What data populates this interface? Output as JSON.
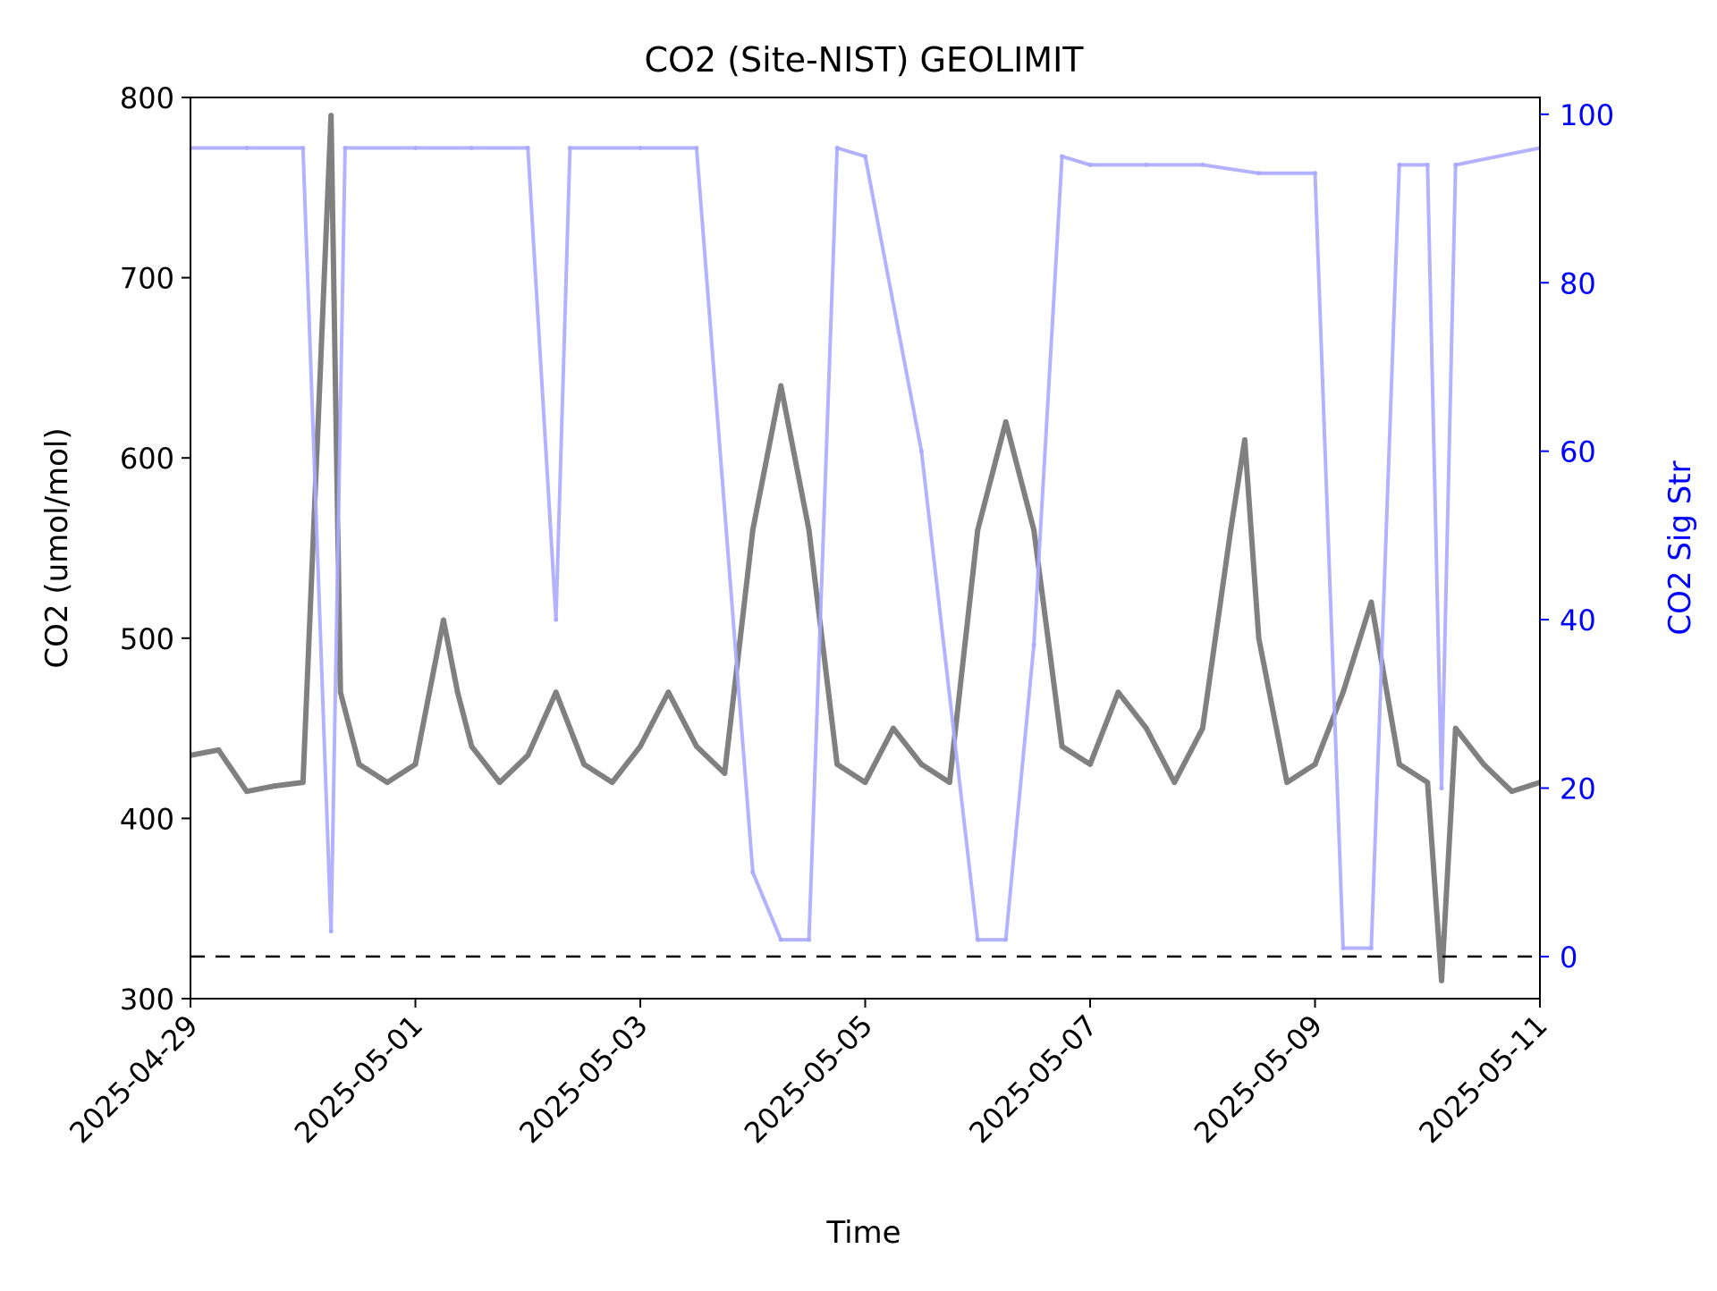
{
  "chart_data": {
    "type": "scatter",
    "title": "CO2 (Site-NIST) GEOLIMIT",
    "xlabel": "Time",
    "ylabel": "CO2 (umol/mol)",
    "y2label": "CO2 Sig Str",
    "xlim": [
      "2025-04-29",
      "2025-05-11"
    ],
    "ylim": [
      300,
      800
    ],
    "y2lim": [
      -5,
      102
    ],
    "x_ticks": [
      "2025-04-29",
      "2025-05-01",
      "2025-05-03",
      "2025-05-05",
      "2025-05-07",
      "2025-05-09",
      "2025-05-11"
    ],
    "y_ticks": [
      300,
      400,
      500,
      600,
      700,
      800
    ],
    "y2_ticks": [
      0,
      20,
      40,
      60,
      80,
      100
    ],
    "reference_line": {
      "axis": "y2",
      "value": 0,
      "style": "dashed",
      "color": "#000000"
    },
    "colors": {
      "co2": "#808080",
      "sig_str": "#aaaaff",
      "y2_axis": "#0000ff",
      "overlap": "#5a5aa8"
    },
    "series": [
      {
        "axis": "y",
        "points": [
          [
            "2025-04-29T00:00",
            435
          ],
          [
            "2025-04-29T06:00",
            438
          ],
          [
            "2025-04-29T12:00",
            415
          ],
          [
            "2025-04-29T18:00",
            418
          ],
          [
            "2025-04-30T00:00",
            420
          ],
          [
            "2025-04-30T06:00",
            790
          ],
          [
            "2025-04-30T08:00",
            470
          ],
          [
            "2025-04-30T12:00",
            430
          ],
          [
            "2025-04-30T18:00",
            420
          ],
          [
            "2025-05-01T00:00",
            430
          ],
          [
            "2025-05-01T06:00",
            510
          ],
          [
            "2025-05-01T09:00",
            470
          ],
          [
            "2025-05-01T12:00",
            440
          ],
          [
            "2025-05-01T18:00",
            420
          ],
          [
            "2025-05-02T00:00",
            435
          ],
          [
            "2025-05-02T06:00",
            470
          ],
          [
            "2025-05-02T12:00",
            430
          ],
          [
            "2025-05-02T18:00",
            420
          ],
          [
            "2025-05-03T00:00",
            440
          ],
          [
            "2025-05-03T06:00",
            470
          ],
          [
            "2025-05-03T12:00",
            440
          ],
          [
            "2025-05-03T18:00",
            425
          ],
          [
            "2025-05-04T00:00",
            560
          ],
          [
            "2025-05-04T06:00",
            640
          ],
          [
            "2025-05-04T12:00",
            560
          ],
          [
            "2025-05-04T18:00",
            430
          ],
          [
            "2025-05-05T00:00",
            420
          ],
          [
            "2025-05-05T06:00",
            450
          ],
          [
            "2025-05-05T12:00",
            430
          ],
          [
            "2025-05-05T18:00",
            420
          ],
          [
            "2025-05-06T00:00",
            560
          ],
          [
            "2025-05-06T06:00",
            620
          ],
          [
            "2025-05-06T12:00",
            560
          ],
          [
            "2025-05-06T18:00",
            440
          ],
          [
            "2025-05-07T00:00",
            430
          ],
          [
            "2025-05-07T06:00",
            470
          ],
          [
            "2025-05-07T12:00",
            450
          ],
          [
            "2025-05-07T18:00",
            420
          ],
          [
            "2025-05-08T00:00",
            450
          ],
          [
            "2025-05-08T06:00",
            560
          ],
          [
            "2025-05-08T09:00",
            610
          ],
          [
            "2025-05-08T12:00",
            500
          ],
          [
            "2025-05-08T18:00",
            420
          ],
          [
            "2025-05-09T00:00",
            430
          ],
          [
            "2025-05-09T06:00",
            470
          ],
          [
            "2025-05-09T12:00",
            520
          ],
          [
            "2025-05-09T18:00",
            430
          ],
          [
            "2025-05-10T00:00",
            420
          ],
          [
            "2025-05-10T03:00",
            310
          ],
          [
            "2025-05-10T06:00",
            450
          ],
          [
            "2025-05-10T12:00",
            430
          ],
          [
            "2025-05-10T18:00",
            415
          ],
          [
            "2025-05-11T00:00",
            420
          ]
        ]
      },
      {
        "axis": "y2",
        "points": [
          [
            "2025-04-29T00:00",
            96
          ],
          [
            "2025-04-29T12:00",
            96
          ],
          [
            "2025-04-30T00:00",
            96
          ],
          [
            "2025-04-30T06:00",
            3
          ],
          [
            "2025-04-30T09:00",
            96
          ],
          [
            "2025-05-01T00:00",
            96
          ],
          [
            "2025-05-01T12:00",
            96
          ],
          [
            "2025-05-02T00:00",
            96
          ],
          [
            "2025-05-02T06:00",
            40
          ],
          [
            "2025-05-02T09:00",
            96
          ],
          [
            "2025-05-03T00:00",
            96
          ],
          [
            "2025-05-03T12:00",
            96
          ],
          [
            "2025-05-04T00:00",
            10
          ],
          [
            "2025-05-04T06:00",
            2
          ],
          [
            "2025-05-04T12:00",
            2
          ],
          [
            "2025-05-04T18:00",
            96
          ],
          [
            "2025-05-05T00:00",
            95
          ],
          [
            "2025-05-05T12:00",
            60
          ],
          [
            "2025-05-06T00:00",
            2
          ],
          [
            "2025-05-06T06:00",
            2
          ],
          [
            "2025-05-06T12:00",
            37
          ],
          [
            "2025-05-06T18:00",
            95
          ],
          [
            "2025-05-07T00:00",
            94
          ],
          [
            "2025-05-07T12:00",
            94
          ],
          [
            "2025-05-08T00:00",
            94
          ],
          [
            "2025-05-08T12:00",
            93
          ],
          [
            "2025-05-09T00:00",
            93
          ],
          [
            "2025-05-09T06:00",
            1
          ],
          [
            "2025-05-09T12:00",
            1
          ],
          [
            "2025-05-09T18:00",
            94
          ],
          [
            "2025-05-10T00:00",
            94
          ],
          [
            "2025-05-10T03:00",
            20
          ],
          [
            "2025-05-10T06:00",
            94
          ],
          [
            "2025-05-11T00:00",
            96
          ]
        ]
      }
    ],
    "grid": false,
    "legend": "none"
  }
}
